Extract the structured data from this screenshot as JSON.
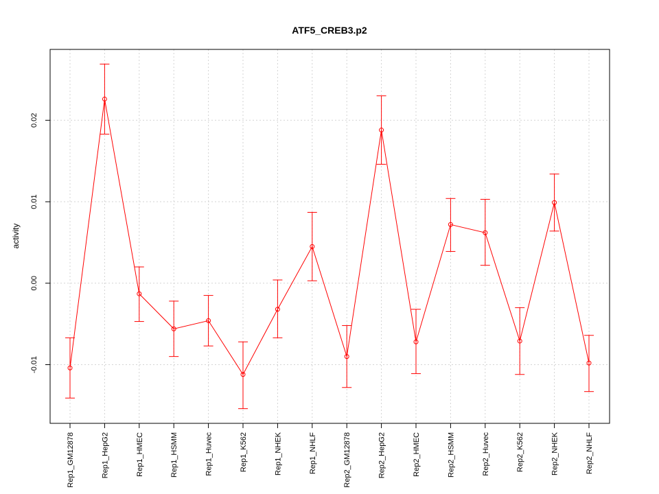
{
  "chart_data": {
    "type": "line",
    "title": "ATF5_CREB3.p2",
    "xlabel": "",
    "ylabel": "activity",
    "grid": true,
    "color": "#ff0000",
    "ylim": [
      -0.0172,
      0.0287
    ],
    "yticks": [
      -0.01,
      0.0,
      0.01,
      0.02
    ],
    "ytick_labels": [
      "-0.01",
      "0.00",
      "0.01",
      "0.02"
    ],
    "categories": [
      "Rep1_GM12878",
      "Rep1_HepG2",
      "Rep1_HMEC",
      "Rep1_HSMM",
      "Rep1_Huvec",
      "Rep1_K562",
      "Rep1_NHEK",
      "Rep1_NHLF",
      "Rep2_GM12878",
      "Rep2_HepG2",
      "Rep2_HMEC",
      "Rep2_HSMM",
      "Rep2_Huvec",
      "Rep2_K562",
      "Rep2_NHEK",
      "Rep2_NHLF"
    ],
    "values": [
      -0.0104,
      0.0226,
      -0.0013,
      -0.0056,
      -0.0046,
      -0.0112,
      -0.0032,
      0.0045,
      -0.009,
      0.0188,
      -0.0072,
      0.0072,
      0.0062,
      -0.0071,
      0.0099,
      -0.0098
    ],
    "upper": [
      -0.0067,
      0.0269,
      0.002,
      -0.0022,
      -0.0015,
      -0.0072,
      0.0004,
      0.0087,
      -0.0052,
      0.023,
      -0.0032,
      0.0104,
      0.0103,
      -0.003,
      0.0134,
      -0.0064
    ],
    "lower": [
      -0.0141,
      0.0183,
      -0.0047,
      -0.009,
      -0.0077,
      -0.0154,
      -0.0067,
      0.0003,
      -0.0128,
      0.0146,
      -0.0111,
      0.0039,
      0.0022,
      -0.0112,
      0.0064,
      -0.0133
    ]
  }
}
